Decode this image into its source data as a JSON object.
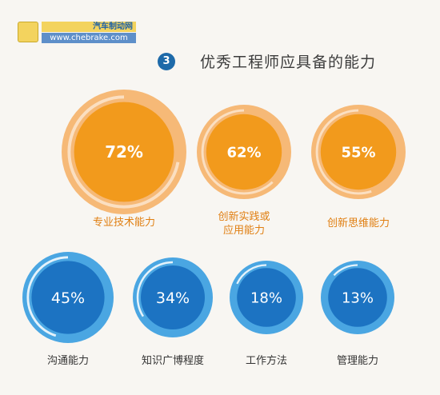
{
  "watermark": {
    "site_name": "汽车制动网",
    "url": "www.chebrake.com"
  },
  "heading": {
    "number": "3",
    "title": "优秀工程师应具备的能力"
  },
  "colors": {
    "orange_fill": "#f29a1c",
    "orange_ring": "#f6b977",
    "orange_text": "#e07f12",
    "blue_fill": "#1c73c2",
    "blue_ring": "#4aa6e2",
    "blue_badge": "#1e6aa9"
  },
  "chart_data": {
    "type": "bubble-percentages",
    "items": [
      {
        "label": "专业技术能力",
        "value": 72,
        "display": "72%",
        "group": "top"
      },
      {
        "label": "创新实践或\n应用能力",
        "value": 62,
        "display": "62%",
        "group": "top"
      },
      {
        "label": "创新思维能力",
        "value": 55,
        "display": "55%",
        "group": "top"
      },
      {
        "label": "沟通能力",
        "value": 45,
        "display": "45%",
        "group": "bottom"
      },
      {
        "label": "知识广博程度",
        "value": 34,
        "display": "34%",
        "group": "bottom"
      },
      {
        "label": "工作方法",
        "value": 18,
        "display": "18%",
        "group": "bottom"
      },
      {
        "label": "管理能力",
        "value": 13,
        "display": "13%",
        "group": "bottom"
      }
    ]
  }
}
